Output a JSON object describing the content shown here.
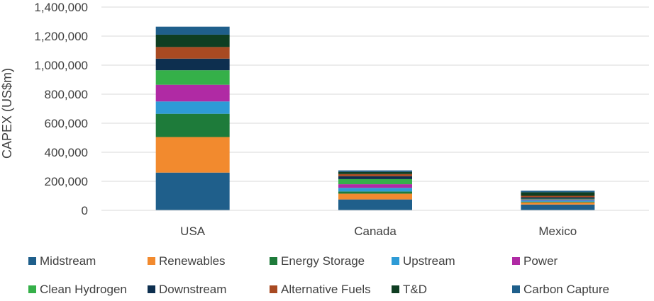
{
  "chart_data": {
    "type": "bar",
    "stacked": true,
    "title": "",
    "xlabel": "",
    "ylabel": "CAPEX (US$m)",
    "ylim": [
      0,
      1400000
    ],
    "yticks": [
      0,
      200000,
      400000,
      600000,
      800000,
      1000000,
      1200000,
      1400000
    ],
    "ytick_labels": [
      "0",
      "200,000",
      "400,000",
      "600,000",
      "800,000",
      "1,000,000",
      "1,200,000",
      "1,400,000"
    ],
    "grid": true,
    "legend_position": "bottom",
    "categories": [
      "USA",
      "Canada",
      "Mexico"
    ],
    "series": [
      {
        "name": "Midstream",
        "color": "#1f5f8b",
        "values": [
          260000,
          75000,
          40000
        ]
      },
      {
        "name": "Renewables",
        "color": "#f28a2e",
        "values": [
          245000,
          40000,
          15000
        ]
      },
      {
        "name": "Energy Storage",
        "color": "#1e7b3a",
        "values": [
          160000,
          15000,
          5000
        ]
      },
      {
        "name": "Upstream",
        "color": "#2e9bd6",
        "values": [
          85000,
          25000,
          10000
        ]
      },
      {
        "name": "Power",
        "color": "#b02aa4",
        "values": [
          115000,
          25000,
          5000
        ]
      },
      {
        "name": "Clean Hydrogen",
        "color": "#35b049",
        "values": [
          100000,
          35000,
          5000
        ]
      },
      {
        "name": "Downstream",
        "color": "#0d2f4f",
        "values": [
          80000,
          20000,
          10000
        ]
      },
      {
        "name": "Alternative Fuels",
        "color": "#a84a22",
        "values": [
          80000,
          15000,
          10000
        ]
      },
      {
        "name": "T&D",
        "color": "#0f3e22",
        "values": [
          85000,
          15000,
          25000
        ]
      },
      {
        "name": "Carbon Capture",
        "color": "#1f5f8b",
        "values": [
          55000,
          10000,
          10000
        ]
      }
    ]
  }
}
